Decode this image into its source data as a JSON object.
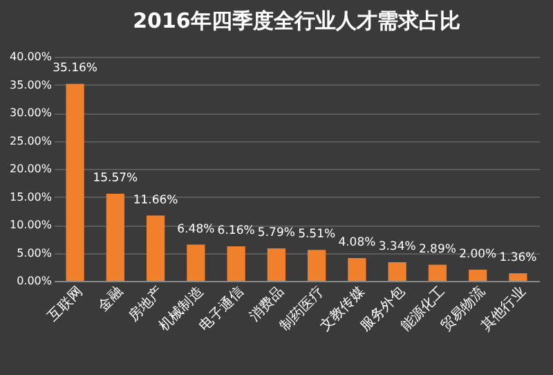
{
  "chart_data": {
    "type": "bar",
    "title": "2016年四季度全行业人才需求占比",
    "categories": [
      "互联网",
      "金融",
      "房地产",
      "机械制造",
      "电子通信",
      "消费品",
      "制药医疗",
      "文教传媒",
      "服务外包",
      "能源化工",
      "贸易物流",
      "其他行业"
    ],
    "values": [
      35.16,
      15.57,
      11.66,
      6.48,
      6.16,
      5.79,
      5.51,
      4.08,
      3.34,
      2.89,
      2.0,
      1.36
    ],
    "value_labels": [
      "35.16%",
      "15.57%",
      "11.66%",
      "6.48%",
      "6.16%",
      "5.79%",
      "5.51%",
      "4.08%",
      "3.34%",
      "2.89%",
      "2.00%",
      "1.36%"
    ],
    "color": "#f0802c",
    "ylim": [
      0,
      40
    ],
    "yticks": [
      {
        "value": 0,
        "label": "0.00%"
      },
      {
        "value": 5,
        "label": "5.00%"
      },
      {
        "value": 10,
        "label": "10.00%"
      },
      {
        "value": 15,
        "label": "15.00%"
      },
      {
        "value": 20,
        "label": "20.00%"
      },
      {
        "value": 25,
        "label": "25.00%"
      },
      {
        "value": 30,
        "label": "30.00%"
      },
      {
        "value": 35,
        "label": "35.00%"
      },
      {
        "value": 40,
        "label": "40.00%"
      }
    ],
    "grid": "y"
  }
}
